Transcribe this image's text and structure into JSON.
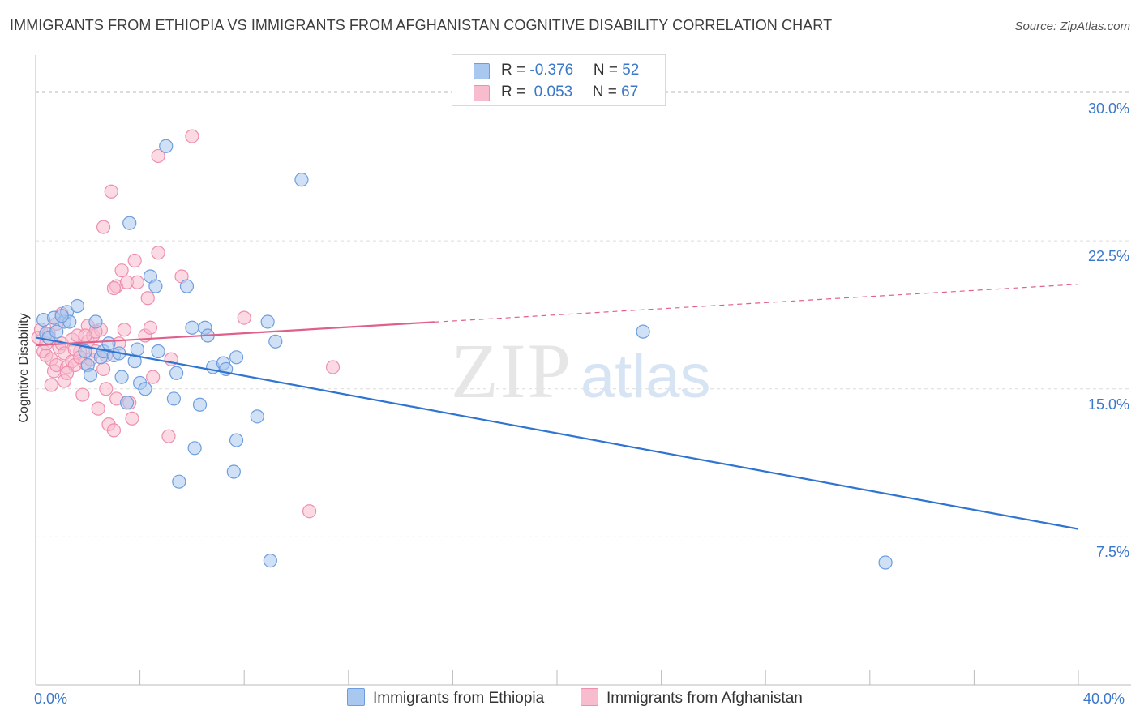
{
  "title": "IMMIGRANTS FROM ETHIOPIA VS IMMIGRANTS FROM AFGHANISTAN COGNITIVE DISABILITY CORRELATION CHART",
  "source": "Source: ZipAtlas.com",
  "watermark": {
    "zip": "ZIP",
    "atlas": "atlas"
  },
  "colors": {
    "blue_fill": "#a9c8ef",
    "blue_stroke": "#6d9de0",
    "blue_line": "#2f74d0",
    "pink_fill": "#f7bccd",
    "pink_stroke": "#ee8fae",
    "pink_line": "#e0608c",
    "tick_label": "#3a78c9",
    "grid": "#dcdcdc"
  },
  "legend": {
    "rows": [
      {
        "r_label": "R = ",
        "r_value": "-0.376",
        "n_label": "N = ",
        "n_value": "52"
      },
      {
        "r_label": "R = ",
        "r_value": " 0.053",
        "n_label": "N = ",
        "n_value": "67"
      }
    ]
  },
  "bottom_legend": [
    "Immigrants from Ethiopia",
    "Immigrants from Afghanistan"
  ],
  "chart_data": {
    "type": "scatter",
    "xlabel": "",
    "ylabel": "Cognitive Disability",
    "xlim": [
      0,
      40
    ],
    "ylim": [
      0,
      31.5
    ],
    "x_tick_labels": [
      "0.0%",
      "40.0%"
    ],
    "y_ticks": [
      7.5,
      15.0,
      22.5,
      30.0
    ],
    "y_tick_labels": [
      "7.5%",
      "15.0%",
      "22.5%",
      "30.0%"
    ],
    "grid": true,
    "series": [
      {
        "name": "Immigrants from Ethiopia",
        "color": "blue",
        "r": -0.376,
        "n": 52,
        "trend": {
          "x": [
            0.0,
            40.0
          ],
          "y": [
            17.6,
            7.9
          ]
        },
        "points": [
          [
            0.3,
            18.5
          ],
          [
            0.4,
            17.8
          ],
          [
            0.5,
            17.6
          ],
          [
            0.7,
            18.6
          ],
          [
            0.8,
            17.9
          ],
          [
            1.1,
            18.4
          ],
          [
            1.2,
            18.9
          ],
          [
            1.3,
            18.4
          ],
          [
            1.6,
            19.2
          ],
          [
            1.9,
            16.9
          ],
          [
            2.0,
            16.2
          ],
          [
            2.1,
            15.7
          ],
          [
            2.3,
            18.4
          ],
          [
            2.5,
            16.6
          ],
          [
            2.6,
            16.9
          ],
          [
            2.8,
            17.3
          ],
          [
            3.0,
            16.7
          ],
          [
            3.2,
            16.8
          ],
          [
            3.3,
            15.6
          ],
          [
            3.5,
            14.3
          ],
          [
            3.6,
            23.4
          ],
          [
            3.8,
            16.4
          ],
          [
            3.9,
            17.0
          ],
          [
            4.0,
            15.3
          ],
          [
            4.2,
            15.0
          ],
          [
            4.4,
            20.7
          ],
          [
            4.6,
            20.2
          ],
          [
            4.7,
            16.9
          ],
          [
            5.0,
            27.3
          ],
          [
            5.3,
            14.5
          ],
          [
            5.4,
            15.8
          ],
          [
            5.5,
            10.3
          ],
          [
            5.8,
            20.2
          ],
          [
            6.0,
            18.1
          ],
          [
            6.1,
            12.0
          ],
          [
            6.3,
            14.2
          ],
          [
            6.5,
            18.1
          ],
          [
            6.6,
            17.7
          ],
          [
            6.8,
            16.1
          ],
          [
            7.2,
            16.3
          ],
          [
            7.3,
            16.0
          ],
          [
            7.6,
            10.8
          ],
          [
            7.7,
            12.4
          ],
          [
            7.7,
            16.6
          ],
          [
            8.5,
            13.6
          ],
          [
            8.9,
            18.4
          ],
          [
            9.0,
            6.3
          ],
          [
            9.2,
            17.4
          ],
          [
            10.2,
            25.6
          ],
          [
            23.3,
            17.9
          ],
          [
            32.6,
            6.2
          ],
          [
            1.0,
            18.7
          ]
        ]
      },
      {
        "name": "Immigrants from Afghanistan",
        "color": "pink",
        "r": 0.053,
        "n": 67,
        "trend": {
          "x": [
            0.0,
            40.0
          ],
          "y": [
            17.2,
            20.3
          ]
        },
        "points": [
          [
            0.1,
            17.6
          ],
          [
            0.2,
            18.0
          ],
          [
            0.3,
            16.9
          ],
          [
            0.4,
            16.7
          ],
          [
            0.5,
            17.8
          ],
          [
            0.6,
            16.5
          ],
          [
            0.6,
            15.2
          ],
          [
            0.7,
            15.9
          ],
          [
            0.8,
            16.2
          ],
          [
            0.9,
            17.1
          ],
          [
            1.0,
            18.8
          ],
          [
            1.0,
            17.3
          ],
          [
            1.1,
            15.4
          ],
          [
            1.1,
            16.8
          ],
          [
            1.2,
            16.1
          ],
          [
            1.4,
            17.5
          ],
          [
            1.4,
            16.4
          ],
          [
            1.5,
            16.2
          ],
          [
            1.6,
            17.7
          ],
          [
            1.7,
            16.9
          ],
          [
            1.8,
            14.7
          ],
          [
            1.9,
            16.3
          ],
          [
            2.0,
            17.4
          ],
          [
            2.1,
            16.5
          ],
          [
            2.2,
            17.7
          ],
          [
            2.3,
            16.9
          ],
          [
            2.4,
            14.0
          ],
          [
            2.5,
            18.0
          ],
          [
            2.6,
            23.2
          ],
          [
            2.7,
            15.0
          ],
          [
            2.7,
            16.7
          ],
          [
            2.8,
            13.2
          ],
          [
            2.9,
            25.0
          ],
          [
            3.0,
            12.9
          ],
          [
            3.1,
            20.2
          ],
          [
            3.1,
            14.5
          ],
          [
            3.2,
            17.3
          ],
          [
            3.3,
            21.0
          ],
          [
            3.4,
            18.0
          ],
          [
            3.5,
            20.4
          ],
          [
            3.6,
            14.3
          ],
          [
            3.7,
            13.5
          ],
          [
            3.8,
            21.5
          ],
          [
            3.9,
            20.4
          ],
          [
            4.2,
            17.7
          ],
          [
            4.3,
            19.6
          ],
          [
            4.4,
            18.1
          ],
          [
            4.5,
            15.6
          ],
          [
            4.7,
            21.9
          ],
          [
            4.7,
            26.8
          ],
          [
            5.1,
            12.6
          ],
          [
            5.2,
            16.5
          ],
          [
            5.6,
            20.7
          ],
          [
            6.0,
            27.8
          ],
          [
            8.0,
            18.6
          ],
          [
            10.5,
            8.8
          ],
          [
            11.4,
            16.1
          ],
          [
            0.8,
            18.3
          ],
          [
            1.2,
            15.8
          ],
          [
            1.5,
            17.0
          ],
          [
            1.7,
            16.6
          ],
          [
            2.0,
            18.2
          ],
          [
            2.3,
            17.9
          ],
          [
            3.0,
            20.1
          ],
          [
            0.4,
            17.3
          ],
          [
            1.9,
            17.7
          ],
          [
            2.6,
            16.0
          ]
        ]
      }
    ]
  }
}
